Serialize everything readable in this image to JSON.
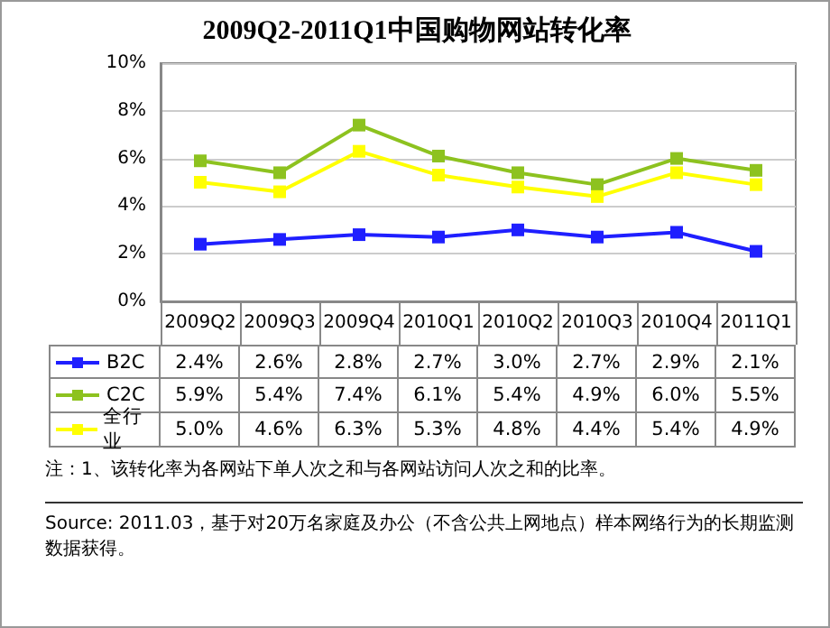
{
  "chart_data": {
    "type": "line",
    "title": "2009Q2-2011Q1中国购物网站转化率",
    "categories": [
      "2009Q2",
      "2009Q3",
      "2009Q4",
      "2010Q1",
      "2010Q2",
      "2010Q3",
      "2010Q4",
      "2011Q1"
    ],
    "series": [
      {
        "name": "B2C",
        "color": "#1f1fff",
        "values": [
          2.4,
          2.6,
          2.8,
          2.7,
          3.0,
          2.7,
          2.9,
          2.1
        ],
        "value_labels": [
          "2.4%",
          "2.6%",
          "2.8%",
          "2.7%",
          "3.0%",
          "2.7%",
          "2.9%",
          "2.1%"
        ]
      },
      {
        "name": "C2C",
        "color": "#8dc21f",
        "values": [
          5.9,
          5.4,
          7.4,
          6.1,
          5.4,
          4.9,
          6.0,
          5.5
        ],
        "value_labels": [
          "5.9%",
          "5.4%",
          "7.4%",
          "6.1%",
          "5.4%",
          "4.9%",
          "6.0%",
          "5.5%"
        ]
      },
      {
        "name": "全行业",
        "color": "#ffff00",
        "values": [
          5.0,
          4.6,
          6.3,
          5.3,
          4.8,
          4.4,
          5.4,
          4.9
        ],
        "value_labels": [
          "5.0%",
          "4.6%",
          "6.3%",
          "5.3%",
          "4.8%",
          "4.4%",
          "5.4%",
          "4.9%"
        ]
      }
    ],
    "ylim": [
      0,
      10
    ],
    "yticks": [
      {
        "value": 0,
        "label": "0%"
      },
      {
        "value": 2,
        "label": "2%"
      },
      {
        "value": 4,
        "label": "4%"
      },
      {
        "value": 6,
        "label": "6%"
      },
      {
        "value": 8,
        "label": "8%"
      },
      {
        "value": 10,
        "label": "10%"
      }
    ],
    "grid": "y",
    "legend": "bottom left",
    "marker": "square",
    "line_style": "solid",
    "annotations": [
      "注：1、该转化率为各网站下单人次之和与各网站访问人次之和的比率。",
      "Source: 2011.03，基于对20万名家庭及办公（不含公共上网地点）样本网络行为的长期监测数据获得。"
    ]
  }
}
